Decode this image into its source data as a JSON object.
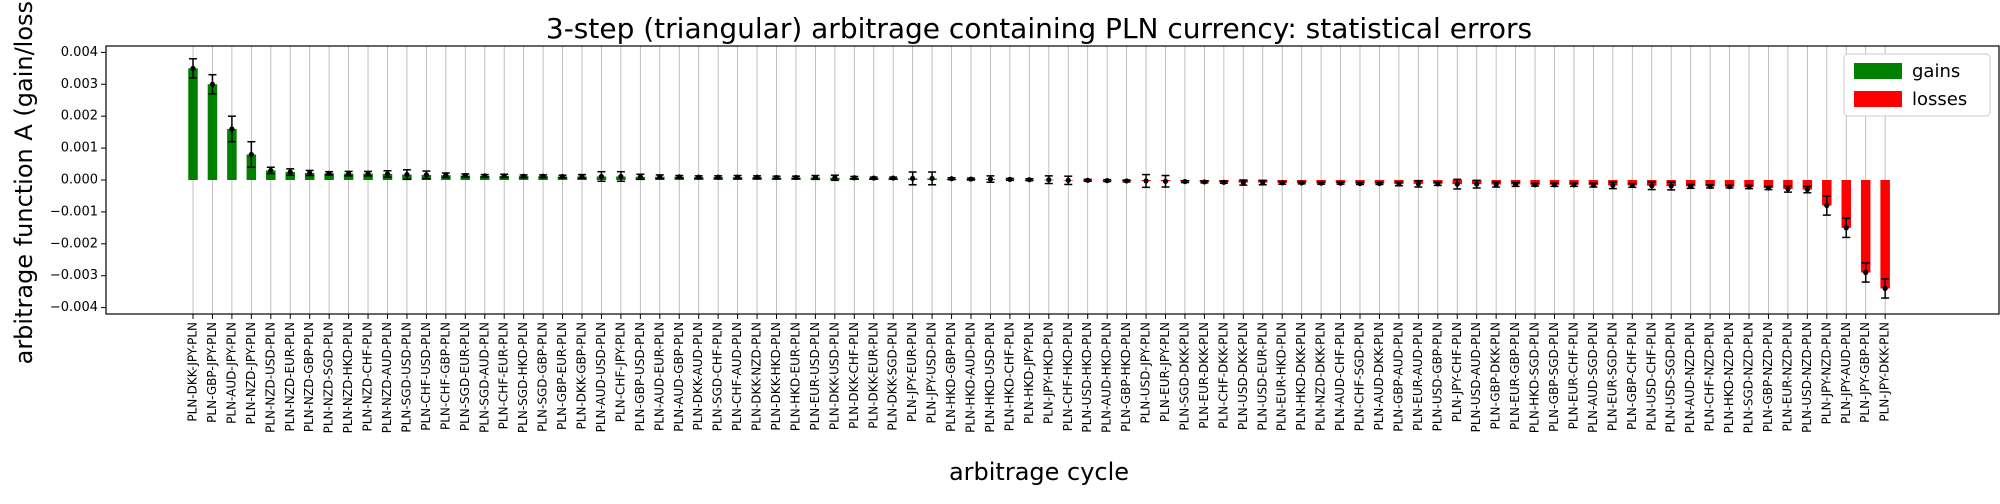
{
  "chart_data": {
    "type": "bar",
    "title": "3-step (triangular) arbitrage containing PLN currency: statistical errors",
    "xlabel": "arbitrage cycle",
    "ylabel": "arbitrage function A (gain/loss)",
    "ylim": [
      -0.0042,
      0.0042
    ],
    "yticks": [
      -0.004,
      -0.003,
      -0.002,
      -0.001,
      0.0,
      0.001,
      0.002,
      0.003,
      0.004
    ],
    "ytick_labels": [
      "−0.004",
      "−0.003",
      "−0.002",
      "−0.001",
      "0.000",
      "0.001",
      "0.002",
      "0.003",
      "0.004"
    ],
    "grid": "x",
    "legend_position": "top-right",
    "legend": [
      {
        "label": "gains",
        "color": "#008000"
      },
      {
        "label": "losses",
        "color": "#ff0000"
      }
    ],
    "colors": {
      "gains": "#008000",
      "losses": "#ff0000",
      "errorbar": "#000000"
    },
    "categories": [
      "PLN-DKK-JPY-PLN",
      "PLN-GBP-JPY-PLN",
      "PLN-AUD-JPY-PLN",
      "PLN-NZD-JPY-PLN",
      "PLN-NZD-USD-PLN",
      "PLN-NZD-EUR-PLN",
      "PLN-NZD-GBP-PLN",
      "PLN-NZD-SGD-PLN",
      "PLN-NZD-HKD-PLN",
      "PLN-NZD-CHF-PLN",
      "PLN-NZD-AUD-PLN",
      "PLN-SGD-USD-PLN",
      "PLN-CHF-USD-PLN",
      "PLN-CHF-GBP-PLN",
      "PLN-SGD-EUR-PLN",
      "PLN-SGD-AUD-PLN",
      "PLN-CHF-EUR-PLN",
      "PLN-SGD-HKD-PLN",
      "PLN-SGD-GBP-PLN",
      "PLN-GBP-EUR-PLN",
      "PLN-DKK-GBP-PLN",
      "PLN-AUD-USD-PLN",
      "PLN-CHF-JPY-PLN",
      "PLN-GBP-USD-PLN",
      "PLN-AUD-EUR-PLN",
      "PLN-AUD-GBP-PLN",
      "PLN-DKK-AUD-PLN",
      "PLN-SGD-CHF-PLN",
      "PLN-CHF-AUD-PLN",
      "PLN-DKK-NZD-PLN",
      "PLN-DKK-HKD-PLN",
      "PLN-HKD-EUR-PLN",
      "PLN-EUR-USD-PLN",
      "PLN-DKK-USD-PLN",
      "PLN-DKK-CHF-PLN",
      "PLN-DKK-EUR-PLN",
      "PLN-DKK-SGD-PLN",
      "PLN-JPY-EUR-PLN",
      "PLN-JPY-USD-PLN",
      "PLN-HKD-GBP-PLN",
      "PLN-HKD-AUD-PLN",
      "PLN-HKD-USD-PLN",
      "PLN-HKD-CHF-PLN",
      "PLN-HKD-JPY-PLN",
      "PLN-JPY-HKD-PLN",
      "PLN-CHF-HKD-PLN",
      "PLN-USD-HKD-PLN",
      "PLN-AUD-HKD-PLN",
      "PLN-GBP-HKD-PLN",
      "PLN-USD-JPY-PLN",
      "PLN-EUR-JPY-PLN",
      "PLN-SGD-DKK-PLN",
      "PLN-EUR-DKK-PLN",
      "PLN-CHF-DKK-PLN",
      "PLN-USD-DKK-PLN",
      "PLN-USD-EUR-PLN",
      "PLN-EUR-HKD-PLN",
      "PLN-HKD-DKK-PLN",
      "PLN-NZD-DKK-PLN",
      "PLN-AUD-CHF-PLN",
      "PLN-CHF-SGD-PLN",
      "PLN-AUD-DKK-PLN",
      "PLN-GBP-AUD-PLN",
      "PLN-EUR-AUD-PLN",
      "PLN-USD-GBP-PLN",
      "PLN-JPY-CHF-PLN",
      "PLN-USD-AUD-PLN",
      "PLN-GBP-DKK-PLN",
      "PLN-EUR-GBP-PLN",
      "PLN-HKD-SGD-PLN",
      "PLN-GBP-SGD-PLN",
      "PLN-EUR-CHF-PLN",
      "PLN-AUD-SGD-PLN",
      "PLN-EUR-SGD-PLN",
      "PLN-GBP-CHF-PLN",
      "PLN-USD-CHF-PLN",
      "PLN-USD-SGD-PLN",
      "PLN-AUD-NZD-PLN",
      "PLN-CHF-NZD-PLN",
      "PLN-HKD-NZD-PLN",
      "PLN-SGD-NZD-PLN",
      "PLN-GBP-NZD-PLN",
      "PLN-EUR-NZD-PLN",
      "PLN-USD-NZD-PLN",
      "PLN-JPY-NZD-PLN",
      "PLN-JPY-AUD-PLN",
      "PLN-JPY-GBP-PLN",
      "PLN-JPY-DKK-PLN"
    ],
    "values": [
      0.0035,
      0.003,
      0.0016,
      0.0008,
      0.0003,
      0.00025,
      0.00022,
      0.00021,
      0.0002,
      0.0002,
      0.00019,
      0.00017,
      0.00016,
      0.00015,
      0.00014,
      0.00013,
      0.00013,
      0.00012,
      0.00012,
      0.00011,
      0.00011,
      0.00011,
      0.00011,
      0.0001,
      0.0001,
      0.0001,
      9e-05,
      9e-05,
      9e-05,
      9e-05,
      8e-05,
      8e-05,
      8e-05,
      7e-05,
      7e-05,
      6e-05,
      6e-05,
      5e-05,
      5e-05,
      4e-05,
      3e-05,
      3e-05,
      2e-05,
      1e-05,
      1e-05,
      -1e-05,
      -1e-05,
      -2e-05,
      -3e-05,
      -3e-05,
      -4e-05,
      -5e-05,
      -6e-05,
      -7e-05,
      -8e-05,
      -8e-05,
      -9e-05,
      -9e-05,
      -0.0001,
      -0.0001,
      -0.00011,
      -0.00011,
      -0.00012,
      -0.00012,
      -0.00012,
      -0.00013,
      -0.00013,
      -0.00014,
      -0.00014,
      -0.00015,
      -0.00015,
      -0.00015,
      -0.00016,
      -0.00017,
      -0.00017,
      -0.00018,
      -0.00019,
      -0.0002,
      -0.0002,
      -0.00021,
      -0.00022,
      -0.00025,
      -0.00028,
      -0.0003,
      -0.0008,
      -0.0015,
      -0.0029,
      -0.0034
    ],
    "errors": [
      0.0003,
      0.0003,
      0.0004,
      0.0004,
      0.0001,
      0.0001,
      8e-05,
      5e-05,
      7e-05,
      7e-05,
      0.0001,
      0.00015,
      0.00012,
      7e-05,
      5e-05,
      4e-05,
      5e-05,
      4e-05,
      4e-05,
      4e-05,
      6e-05,
      0.00015,
      0.00015,
      8e-05,
      6e-05,
      4e-05,
      4e-05,
      4e-05,
      5e-05,
      4e-05,
      4e-05,
      4e-05,
      6e-05,
      8e-05,
      4e-05,
      3e-05,
      3e-05,
      0.0002,
      0.0002,
      3e-05,
      3e-05,
      0.0001,
      3e-05,
      3e-05,
      0.00012,
      0.00013,
      3e-05,
      3e-05,
      3e-05,
      0.0002,
      0.00018,
      3e-05,
      3e-05,
      3e-05,
      8e-05,
      7e-05,
      4e-05,
      3e-05,
      3e-05,
      3e-05,
      3e-05,
      3e-05,
      6e-05,
      0.0001,
      5e-05,
      0.00015,
      0.00012,
      8e-05,
      6e-05,
      4e-05,
      5e-05,
      5e-05,
      6e-05,
      0.0001,
      6e-05,
      0.00012,
      0.00012,
      6e-05,
      5e-05,
      4e-05,
      5e-05,
      5e-05,
      0.0001,
      0.0001,
      0.0003,
      0.0003,
      0.0003,
      0.0003
    ]
  }
}
